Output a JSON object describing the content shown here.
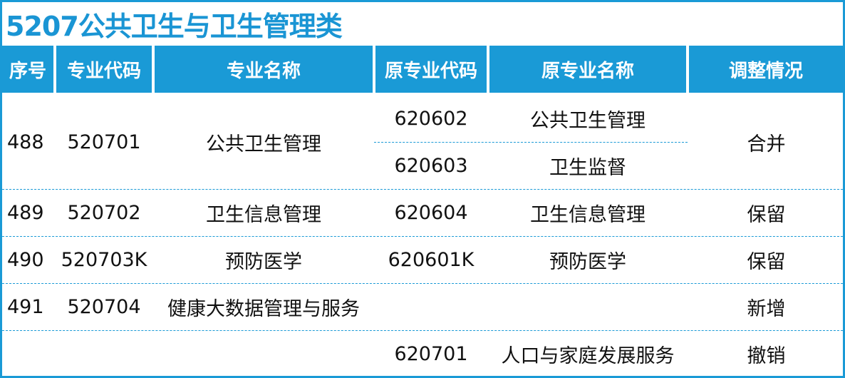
{
  "title": "5207公共卫生与卫生管理类",
  "accent_color": "#1a9ad6",
  "columns": [
    "序号",
    "专业代码",
    "专业名称",
    "原专业代码",
    "原专业名称",
    "调整情况"
  ],
  "rows": [
    {
      "seq": "488",
      "code": "520701",
      "name": "公共卫生管理",
      "orig": [
        {
          "code": "620602",
          "name": "公共卫生管理"
        },
        {
          "code": "620603",
          "name": "卫生监督"
        }
      ],
      "status": "合并"
    },
    {
      "seq": "489",
      "code": "520702",
      "name": "卫生信息管理",
      "orig": [
        {
          "code": "620604",
          "name": "卫生信息管理"
        }
      ],
      "status": "保留"
    },
    {
      "seq": "490",
      "code": "520703K",
      "name": "预防医学",
      "orig": [
        {
          "code": "620601K",
          "name": "预防医学"
        }
      ],
      "status": "保留"
    },
    {
      "seq": "491",
      "code": "520704",
      "name": "健康大数据管理与服务",
      "orig": [
        {
          "code": "",
          "name": ""
        }
      ],
      "status": "新增"
    },
    {
      "seq": "",
      "code": "",
      "name": "",
      "orig": [
        {
          "code": "620701",
          "name": "人口与家庭发展服务"
        }
      ],
      "status": "撤销"
    }
  ]
}
